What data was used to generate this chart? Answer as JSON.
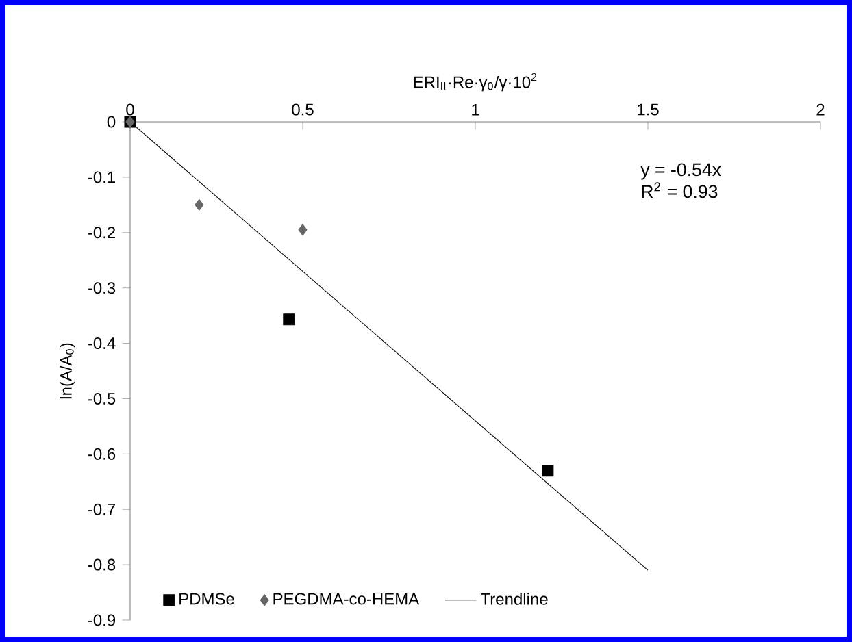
{
  "chart_data": {
    "type": "scatter",
    "xlabel": "ERI$_{II}$·Re·γ$_{0}$/γ·10$^{2}$",
    "ylabel": "ln(A/A$_{0}$)",
    "xlim": [
      0,
      2
    ],
    "ylim": [
      -0.9,
      0
    ],
    "xticks": [
      0,
      0.5,
      1,
      1.5,
      2
    ],
    "yticks": [
      0,
      -0.1,
      -0.2,
      -0.3,
      -0.4,
      -0.5,
      -0.6,
      -0.7,
      -0.8,
      -0.9
    ],
    "series": [
      {
        "name": "PDMSe",
        "marker": "square",
        "color": "#000000",
        "x": [
          0,
          0.46,
          1.21
        ],
        "values": [
          0,
          -0.357,
          -0.63
        ]
      },
      {
        "name": "PEGDMA-co-HEMA",
        "marker": "diamond",
        "color": "#666666",
        "x": [
          0,
          0.2,
          0.5
        ],
        "values": [
          0,
          -0.15,
          -0.195
        ]
      },
      {
        "name": "Trendline",
        "type": "line",
        "marker": "none",
        "line_style": "solid",
        "color": "#000000",
        "x": [
          0,
          1.5
        ],
        "values": [
          0,
          -0.81
        ]
      }
    ],
    "annotations": [
      "y = -0.54x",
      "R$^{2}$ = 0.93"
    ],
    "legend": "bottom",
    "grid": false
  }
}
